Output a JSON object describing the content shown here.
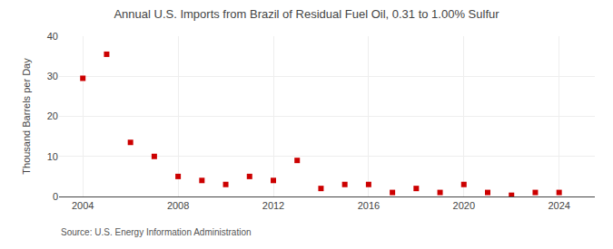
{
  "chart_data": {
    "type": "scatter",
    "title": "Annual U.S. Imports from Brazil of Residual Fuel Oil, 0.31 to 1.00% Sulfur",
    "ylabel": "Thousand Barrels per Day",
    "annotations": [
      "Source: U.S. Energy Information Administration"
    ],
    "x": [
      2004,
      2005,
      2006,
      2007,
      2008,
      2009,
      2010,
      2011,
      2012,
      2013,
      2014,
      2015,
      2016,
      2017,
      2018,
      2019,
      2020,
      2021,
      2022,
      2023,
      2024
    ],
    "values": [
      29.5,
      35.5,
      13.5,
      10.0,
      5.0,
      4.0,
      3.0,
      5.0,
      4.0,
      9.0,
      2.0,
      3.0,
      3.0,
      1.0,
      2.0,
      1.0,
      3.0,
      1.0,
      0.3,
      1.0,
      1.0
    ],
    "color": "#cc0000",
    "marker": "square",
    "xlim": [
      2003.0,
      2025.5
    ],
    "xticks": [
      2004,
      2008,
      2012,
      2016,
      2020,
      2024
    ],
    "ylim": [
      0,
      40
    ],
    "yticks": [
      0,
      10,
      20,
      30,
      40
    ],
    "grid": true
  }
}
